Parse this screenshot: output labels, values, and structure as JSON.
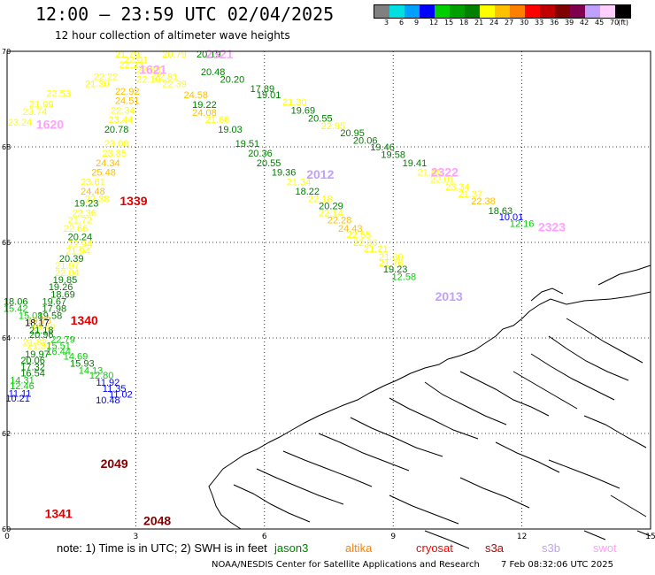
{
  "header": {
    "title": "12:00 — 23:59 UTC 02/04/2025",
    "subtitle": "12 hour collection of altimeter wave heights"
  },
  "legend": {
    "colors": [
      "#808080",
      "#00e0e0",
      "#00a0ff",
      "#0000ff",
      "#00d000",
      "#00a000",
      "#008000",
      "#ffff00",
      "#ffc000",
      "#ff8000",
      "#ff0000",
      "#c00000",
      "#800000",
      "#800050",
      "#c0a0ff",
      "#ffd0ff",
      "#000000"
    ],
    "labels": [
      "3",
      "6",
      "9",
      "12",
      "15",
      "18",
      "21",
      "24",
      "27",
      "30",
      "33",
      "36",
      "39",
      "42",
      "45",
      "70",
      "(ft)"
    ]
  },
  "chart_data": {
    "type": "map",
    "x_ticks": [
      "0",
      "3",
      "6",
      "9",
      "12",
      "15"
    ],
    "y_ticks": [
      "60",
      "62",
      "64",
      "66",
      "68",
      "70"
    ],
    "xlim": [
      0,
      15
    ],
    "ylim": [
      60,
      70
    ],
    "grid": true,
    "observations": [
      {
        "lon": 2.8,
        "lat": 69.92,
        "v": "21.79",
        "c": "#ffff00"
      },
      {
        "lon": 3.9,
        "lat": 69.92,
        "v": "20.79",
        "c": "#ffff00"
      },
      {
        "lon": 4.7,
        "lat": 69.92,
        "v": "20.19",
        "c": "#008000"
      },
      {
        "lon": 3.0,
        "lat": 69.8,
        "v": "22.01",
        "c": "#ffff00"
      },
      {
        "lon": 2.9,
        "lat": 69.7,
        "v": "22.23",
        "c": "#ffff00"
      },
      {
        "lon": 3.3,
        "lat": 69.6,
        "v": "22.88",
        "c": "#ffff00"
      },
      {
        "lon": 2.3,
        "lat": 69.45,
        "v": "22.22",
        "c": "#ffff00"
      },
      {
        "lon": 3.3,
        "lat": 69.4,
        "v": "22.10",
        "c": "#ffff00"
      },
      {
        "lon": 3.7,
        "lat": 69.45,
        "v": "22.81",
        "c": "#ffff00"
      },
      {
        "lon": 2.1,
        "lat": 69.3,
        "v": "21.30",
        "c": "#ffff00"
      },
      {
        "lon": 3.9,
        "lat": 69.3,
        "v": "22.39",
        "c": "#ffff00"
      },
      {
        "lon": 1.2,
        "lat": 69.1,
        "v": "22.53",
        "c": "#ffff00"
      },
      {
        "lon": 2.8,
        "lat": 69.15,
        "v": "22.92",
        "c": "#ffc000"
      },
      {
        "lon": 4.4,
        "lat": 69.07,
        "v": "24.58",
        "c": "#ffc000"
      },
      {
        "lon": 0.8,
        "lat": 68.88,
        "v": "21.99",
        "c": "#ffff00"
      },
      {
        "lon": 2.8,
        "lat": 68.95,
        "v": "24.51",
        "c": "#ffc000"
      },
      {
        "lon": 4.6,
        "lat": 68.87,
        "v": "19.22",
        "c": "#008000"
      },
      {
        "lon": 0.65,
        "lat": 68.72,
        "v": "23.74",
        "c": "#ffff00"
      },
      {
        "lon": 2.7,
        "lat": 68.75,
        "v": "22.34",
        "c": "#ffff00"
      },
      {
        "lon": 4.6,
        "lat": 68.7,
        "v": "24.08",
        "c": "#ffc000"
      },
      {
        "lon": 0.3,
        "lat": 68.5,
        "v": "23.24",
        "c": "#ffff00"
      },
      {
        "lon": 2.65,
        "lat": 68.55,
        "v": "23.44",
        "c": "#ffff00"
      },
      {
        "lon": 4.9,
        "lat": 68.55,
        "v": "21.66",
        "c": "#ffff00"
      },
      {
        "lon": 2.55,
        "lat": 68.35,
        "v": "20.78",
        "c": "#008000"
      },
      {
        "lon": 5.2,
        "lat": 68.35,
        "v": "19.03",
        "c": "#008000"
      },
      {
        "lon": 2.55,
        "lat": 68.05,
        "v": "23.08",
        "c": "#ffff00"
      },
      {
        "lon": 5.6,
        "lat": 68.05,
        "v": "19.51",
        "c": "#008000"
      },
      {
        "lon": 2.5,
        "lat": 67.85,
        "v": "23.85",
        "c": "#ffff00"
      },
      {
        "lon": 5.9,
        "lat": 67.85,
        "v": "20.36",
        "c": "#008000"
      },
      {
        "lon": 2.35,
        "lat": 67.65,
        "v": "24.34",
        "c": "#ffc000"
      },
      {
        "lon": 6.1,
        "lat": 67.65,
        "v": "20.55",
        "c": "#008000"
      },
      {
        "lon": 2.25,
        "lat": 67.45,
        "v": "25.48",
        "c": "#ffc000"
      },
      {
        "lon": 6.45,
        "lat": 67.45,
        "v": "19.36",
        "c": "#008000"
      },
      {
        "lon": 2.0,
        "lat": 67.25,
        "v": "23.61",
        "c": "#ffff00"
      },
      {
        "lon": 6.8,
        "lat": 67.25,
        "v": "21.34",
        "c": "#ffff00"
      },
      {
        "lon": 2.0,
        "lat": 67.05,
        "v": "24.48",
        "c": "#ffc000"
      },
      {
        "lon": 7.0,
        "lat": 67.05,
        "v": "18.22",
        "c": "#008000"
      },
      {
        "lon": 2.1,
        "lat": 66.9,
        "v": "22.38",
        "c": "#ffff00"
      },
      {
        "lon": 7.3,
        "lat": 66.9,
        "v": "22.18",
        "c": "#ffff00"
      },
      {
        "lon": 1.85,
        "lat": 66.8,
        "v": "19.23",
        "c": "#008000"
      },
      {
        "lon": 7.55,
        "lat": 66.75,
        "v": "20.29",
        "c": "#008000"
      },
      {
        "lon": 1.8,
        "lat": 66.6,
        "v": "22.36",
        "c": "#ffff00"
      },
      {
        "lon": 7.55,
        "lat": 66.6,
        "v": "22.14",
        "c": "#ffff00"
      },
      {
        "lon": 1.7,
        "lat": 66.45,
        "v": "21.72",
        "c": "#ffff00"
      },
      {
        "lon": 7.75,
        "lat": 66.45,
        "v": "22.28",
        "c": "#ffc000"
      },
      {
        "lon": 1.6,
        "lat": 66.28,
        "v": "22.66",
        "c": "#ffff00"
      },
      {
        "lon": 8.0,
        "lat": 66.28,
        "v": "24.43",
        "c": "#ffc000"
      },
      {
        "lon": 1.7,
        "lat": 66.1,
        "v": "20.24",
        "c": "#008000"
      },
      {
        "lon": 8.2,
        "lat": 66.15,
        "v": "22.55",
        "c": "#ffff00"
      },
      {
        "lon": 1.7,
        "lat": 65.95,
        "v": "22.94",
        "c": "#ffff00"
      },
      {
        "lon": 8.35,
        "lat": 65.98,
        "v": "22.66",
        "c": "#ffff00"
      },
      {
        "lon": 1.65,
        "lat": 65.8,
        "v": "21.94",
        "c": "#ffff00"
      },
      {
        "lon": 8.6,
        "lat": 65.85,
        "v": "21.21",
        "c": "#ffff00"
      },
      {
        "lon": 1.5,
        "lat": 65.65,
        "v": "20.39",
        "c": "#008000"
      },
      {
        "lon": 8.95,
        "lat": 65.68,
        "v": "21.30",
        "c": "#ffff00"
      },
      {
        "lon": 1.4,
        "lat": 65.5,
        "v": "21.97",
        "c": "#ffff00"
      },
      {
        "lon": 8.95,
        "lat": 65.55,
        "v": "21.76",
        "c": "#ffff00"
      },
      {
        "lon": 1.4,
        "lat": 65.35,
        "v": "22.04",
        "c": "#ffff00"
      },
      {
        "lon": 9.05,
        "lat": 65.42,
        "v": "19.23",
        "c": "#008000"
      },
      {
        "lon": 1.35,
        "lat": 65.2,
        "v": "19.85",
        "c": "#008000"
      },
      {
        "lon": 9.25,
        "lat": 65.27,
        "v": "12.58",
        "c": "#00d000"
      },
      {
        "lon": 1.25,
        "lat": 65.05,
        "v": "19.26",
        "c": "#008000"
      },
      {
        "lon": 1.3,
        "lat": 64.9,
        "v": "18.69",
        "c": "#008000"
      },
      {
        "lon": 0.2,
        "lat": 64.75,
        "v": "18.06",
        "c": "#008000"
      },
      {
        "lon": 1.1,
        "lat": 64.75,
        "v": "19.67",
        "c": "#008000"
      },
      {
        "lon": 0.2,
        "lat": 64.6,
        "v": "15.42",
        "c": "#00d000"
      },
      {
        "lon": 1.1,
        "lat": 64.6,
        "v": "17.98",
        "c": "#008000"
      },
      {
        "lon": 0.55,
        "lat": 64.45,
        "v": "15.08",
        "c": "#00d000"
      },
      {
        "lon": 1.0,
        "lat": 64.45,
        "v": "19.58",
        "c": "#008000"
      },
      {
        "lon": 0.75,
        "lat": 64.35,
        "v": "19.75",
        "c": "#ffc000"
      },
      {
        "lon": 0.7,
        "lat": 64.3,
        "v": "18.17",
        "c": "#000000"
      },
      {
        "lon": 0.85,
        "lat": 64.2,
        "v": "19.42",
        "c": "#ffff00"
      },
      {
        "lon": 0.8,
        "lat": 64.15,
        "v": "21.18",
        "c": "#008000"
      },
      {
        "lon": 0.8,
        "lat": 64.05,
        "v": "20.96",
        "c": "#008000"
      },
      {
        "lon": 1.3,
        "lat": 63.95,
        "v": "22.79",
        "c": "#00d000"
      },
      {
        "lon": 0.65,
        "lat": 63.9,
        "v": "21.82",
        "c": "#ffff00"
      },
      {
        "lon": 0.75,
        "lat": 63.82,
        "v": "21.37",
        "c": "#ffff00"
      },
      {
        "lon": 1.2,
        "lat": 63.82,
        "v": "15.51",
        "c": "#00d000"
      },
      {
        "lon": 1.2,
        "lat": 63.7,
        "v": "16.44",
        "c": "#00d000"
      },
      {
        "lon": 0.7,
        "lat": 63.65,
        "v": "19.97",
        "c": "#008000"
      },
      {
        "lon": 1.6,
        "lat": 63.6,
        "v": "14.69",
        "c": "#00d000"
      },
      {
        "lon": 0.6,
        "lat": 63.52,
        "v": "20.06",
        "c": "#008000"
      },
      {
        "lon": 1.75,
        "lat": 63.45,
        "v": "15.93",
        "c": "#008000"
      },
      {
        "lon": 0.6,
        "lat": 63.38,
        "v": "17.32",
        "c": "#008000"
      },
      {
        "lon": 1.95,
        "lat": 63.3,
        "v": "14.13",
        "c": "#00d000"
      },
      {
        "lon": 0.6,
        "lat": 63.25,
        "v": "16.54",
        "c": "#008000"
      },
      {
        "lon": 2.2,
        "lat": 63.2,
        "v": "12.80",
        "c": "#00d000"
      },
      {
        "lon": 0.35,
        "lat": 63.1,
        "v": "14.31",
        "c": "#00d000"
      },
      {
        "lon": 2.35,
        "lat": 63.05,
        "v": "11.92",
        "c": "#0000ff"
      },
      {
        "lon": 0.35,
        "lat": 62.98,
        "v": "12.46",
        "c": "#00d000"
      },
      {
        "lon": 2.5,
        "lat": 62.92,
        "v": "11.35",
        "c": "#0000ff"
      },
      {
        "lon": 0.3,
        "lat": 62.82,
        "v": "11.11",
        "c": "#0000ff"
      },
      {
        "lon": 2.65,
        "lat": 62.8,
        "v": "11.02",
        "c": "#0000ff"
      },
      {
        "lon": 0.25,
        "lat": 62.72,
        "v": "10.21",
        "c": "#0000ff"
      },
      {
        "lon": 2.35,
        "lat": 62.68,
        "v": "10.48",
        "c": "#0000ff"
      },
      {
        "lon": 4.8,
        "lat": 69.55,
        "v": "20.48",
        "c": "#008000"
      },
      {
        "lon": 5.25,
        "lat": 69.4,
        "v": "20.20",
        "c": "#008000"
      },
      {
        "lon": 5.95,
        "lat": 69.2,
        "v": "17.89",
        "c": "#008000"
      },
      {
        "lon": 6.1,
        "lat": 69.07,
        "v": "19.01",
        "c": "#008000"
      },
      {
        "lon": 6.7,
        "lat": 68.92,
        "v": "21.30",
        "c": "#ffff00"
      },
      {
        "lon": 6.9,
        "lat": 68.75,
        "v": "19.69",
        "c": "#008000"
      },
      {
        "lon": 7.3,
        "lat": 68.58,
        "v": "20.55",
        "c": "#008000"
      },
      {
        "lon": 7.6,
        "lat": 68.42,
        "v": "22.95",
        "c": "#ffff00"
      },
      {
        "lon": 8.05,
        "lat": 68.28,
        "v": "20.95",
        "c": "#008000"
      },
      {
        "lon": 8.35,
        "lat": 68.12,
        "v": "20.06",
        "c": "#008000"
      },
      {
        "lon": 8.75,
        "lat": 67.98,
        "v": "19.46",
        "c": "#008000"
      },
      {
        "lon": 9.0,
        "lat": 67.82,
        "v": "19.58",
        "c": "#008000"
      },
      {
        "lon": 9.5,
        "lat": 67.65,
        "v": "19.41",
        "c": "#008000"
      },
      {
        "lon": 9.85,
        "lat": 67.45,
        "v": "21.45",
        "c": "#ffff00"
      },
      {
        "lon": 10.15,
        "lat": 67.3,
        "v": "22.01",
        "c": "#ffff00"
      },
      {
        "lon": 10.5,
        "lat": 67.15,
        "v": "23.34",
        "c": "#ffff00"
      },
      {
        "lon": 10.8,
        "lat": 67.0,
        "v": "21.37",
        "c": "#ffff00"
      },
      {
        "lon": 11.1,
        "lat": 66.85,
        "v": "22.38",
        "c": "#ffc000"
      },
      {
        "lon": 11.5,
        "lat": 66.65,
        "v": "18.63",
        "c": "#008000"
      },
      {
        "lon": 11.75,
        "lat": 66.52,
        "v": "10.01",
        "c": "#0000ff"
      },
      {
        "lon": 12.0,
        "lat": 66.38,
        "v": "12.16",
        "c": "#00d000"
      }
    ],
    "pass_ids": [
      {
        "lon": 4.95,
        "lat": 69.92,
        "label": "2321",
        "c": "#ffa0ff"
      },
      {
        "lon": 3.4,
        "lat": 69.6,
        "label": "1621",
        "c": "#ffa0ff"
      },
      {
        "lon": 1.0,
        "lat": 68.45,
        "label": "1620",
        "c": "#ffa0ff"
      },
      {
        "lon": 2.95,
        "lat": 66.85,
        "label": "1339",
        "c": "#e00000"
      },
      {
        "lon": 7.3,
        "lat": 67.4,
        "label": "2012",
        "c": "#c0a0ff"
      },
      {
        "lon": 10.2,
        "lat": 67.45,
        "label": "2322",
        "c": "#ffa0ff"
      },
      {
        "lon": 12.7,
        "lat": 66.3,
        "label": "2323",
        "c": "#ffa0ff"
      },
      {
        "lon": 10.3,
        "lat": 64.85,
        "label": "2013",
        "c": "#c0a0ff"
      },
      {
        "lon": 1.8,
        "lat": 64.35,
        "label": "1340",
        "c": "#e00000"
      },
      {
        "lon": 2.5,
        "lat": 61.35,
        "label": "2049",
        "c": "#800000"
      },
      {
        "lon": 1.2,
        "lat": 60.3,
        "label": "1341",
        "c": "#e00000"
      },
      {
        "lon": 3.5,
        "lat": 60.15,
        "label": "2048",
        "c": "#800000"
      }
    ]
  },
  "note": {
    "prefix": "note:  1) Time is in UTC;  2) SWH is in feet",
    "missions": [
      {
        "name": "jason3",
        "c": "#008000"
      },
      {
        "name": "altika",
        "c": "#ff8000"
      },
      {
        "name": "cryosat",
        "c": "#ff0000"
      },
      {
        "name": "s3a",
        "c": "#c00000"
      },
      {
        "name": "s3b",
        "c": "#c0a0ff"
      },
      {
        "name": "swot",
        "c": "#ffa0ff"
      }
    ]
  },
  "footer": {
    "credit": "NOAA/NESDIS Center for Satellite Applications and Research",
    "stamp": "7 Feb 08:32:06 UTC 2025"
  }
}
